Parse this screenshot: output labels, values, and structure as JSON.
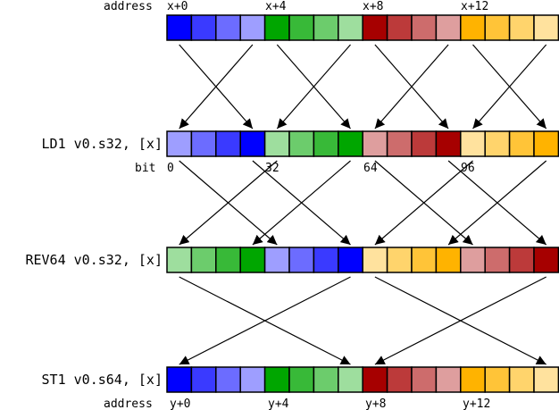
{
  "colors": {
    "blue": [
      "#0000ff",
      "#3a3aff",
      "#6c6cff",
      "#9e9eff"
    ],
    "green": [
      "#00a600",
      "#38b938",
      "#6ccc6c",
      "#9ede9e"
    ],
    "red": [
      "#a60000",
      "#bc3a3a",
      "#cd6c6c",
      "#de9e9e"
    ],
    "orange": [
      "#ffb300",
      "#ffc438",
      "#ffd46c",
      "#ffe29e"
    ]
  },
  "rows": [
    {
      "label": "",
      "cells": [
        "blue0",
        "blue1",
        "blue2",
        "blue3",
        "green0",
        "green1",
        "green2",
        "green3",
        "red0",
        "red1",
        "red2",
        "red3",
        "orange0",
        "orange1",
        "orange2",
        "orange3"
      ]
    },
    {
      "label": "LD1 v0.s32, [x]",
      "cells": [
        "blue3",
        "blue2",
        "blue1",
        "blue0",
        "green3",
        "green2",
        "green1",
        "green0",
        "red3",
        "red2",
        "red1",
        "red0",
        "orange3",
        "orange2",
        "orange1",
        "orange0"
      ]
    },
    {
      "label": "REV64 v0.s32, [x]",
      "cells": [
        "green3",
        "green2",
        "green1",
        "green0",
        "blue3",
        "blue2",
        "blue1",
        "blue0",
        "orange3",
        "orange2",
        "orange1",
        "orange0",
        "red3",
        "red2",
        "red1",
        "red0"
      ]
    },
    {
      "label": "ST1 v0.s64, [x]",
      "cells": [
        "blue0",
        "blue1",
        "blue2",
        "blue3",
        "green0",
        "green1",
        "green2",
        "green3",
        "red0",
        "red1",
        "red2",
        "red3",
        "orange0",
        "orange1",
        "orange2",
        "orange3"
      ]
    }
  ],
  "top_address": {
    "label": "address",
    "marks": [
      "x+0",
      "x+4",
      "x+8",
      "x+12"
    ]
  },
  "bit_labels": {
    "label": "bit",
    "marks": [
      "0",
      "32",
      "64",
      "96"
    ]
  },
  "bottom_address": {
    "label": "address",
    "marks": [
      "y+0",
      "y+4",
      "y+8",
      "y+12"
    ]
  },
  "arrows": [
    {
      "from_row": 0,
      "to_row": 1,
      "pairs": [
        [
          0,
          3
        ],
        [
          3,
          0
        ],
        [
          4,
          7
        ],
        [
          7,
          4
        ],
        [
          8,
          11
        ],
        [
          11,
          8
        ],
        [
          12,
          15
        ],
        [
          15,
          12
        ]
      ]
    },
    {
      "from_row": 1,
      "to_row": 2,
      "pairs": [
        [
          0,
          4
        ],
        [
          3,
          7
        ],
        [
          4,
          0
        ],
        [
          7,
          3
        ],
        [
          8,
          12
        ],
        [
          11,
          15
        ],
        [
          12,
          8
        ],
        [
          15,
          11
        ]
      ]
    },
    {
      "from_row": 2,
      "to_row": 3,
      "pairs": [
        [
          0,
          7
        ],
        [
          7,
          0
        ],
        [
          8,
          15
        ],
        [
          15,
          8
        ]
      ]
    }
  ]
}
